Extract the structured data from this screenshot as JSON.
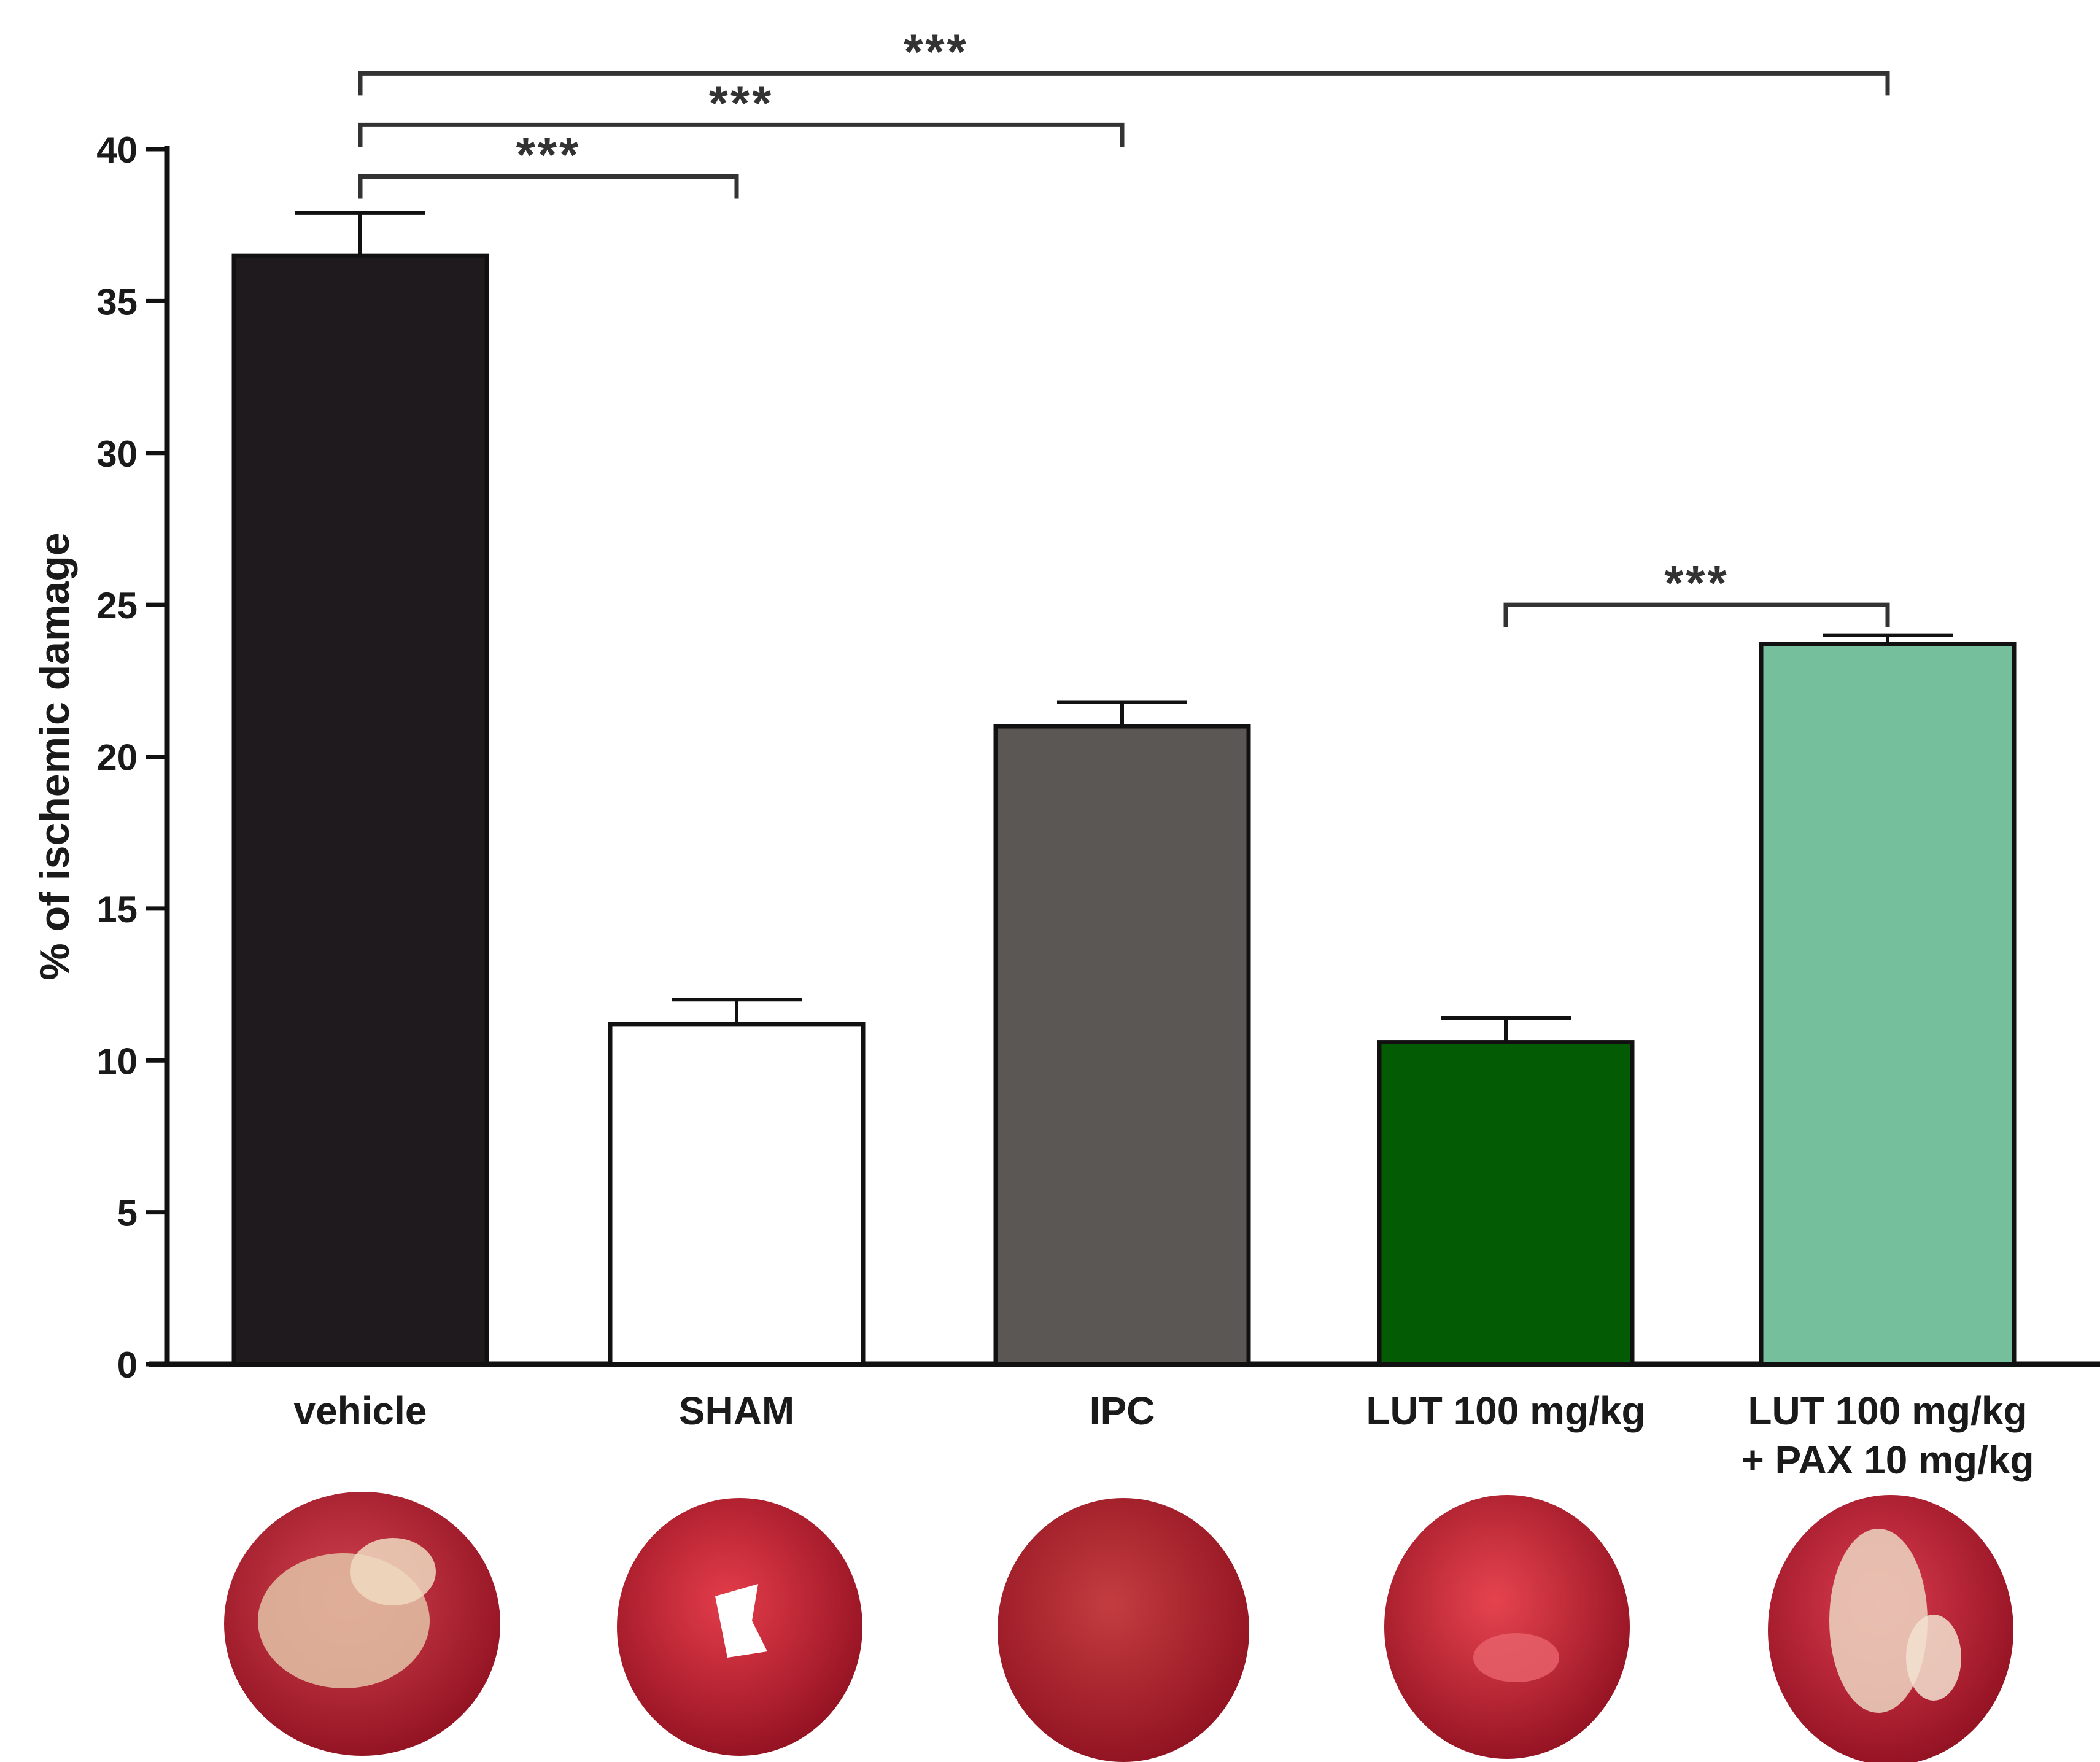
{
  "chart_data": {
    "type": "bar",
    "ylabel": "% of ischemic damage",
    "xlabel": "",
    "ylim": [
      0,
      40
    ],
    "yticks": [
      0,
      5,
      10,
      15,
      20,
      25,
      30,
      35,
      40
    ],
    "grid": false,
    "categories": [
      {
        "lines": [
          "vehicle"
        ]
      },
      {
        "lines": [
          "SHAM"
        ]
      },
      {
        "lines": [
          "IPC"
        ]
      },
      {
        "lines": [
          "LUT 100 mg/kg"
        ]
      },
      {
        "lines": [
          "LUT 100 mg/kg",
          "+ PAX 10 mg/kg"
        ]
      }
    ],
    "values": [
      36.5,
      11.2,
      21.0,
      10.6,
      23.7
    ],
    "errors": [
      1.4,
      0.8,
      0.8,
      0.8,
      0.3
    ],
    "colors": [
      "#1f1a1d",
      "#ffffff",
      "#5b5755",
      "#035c03",
      "#76bf9d"
    ],
    "significance": [
      {
        "from": 0,
        "to": 4,
        "level": 42.5,
        "label": "***"
      },
      {
        "from": 0,
        "to": 2,
        "level": 40.8,
        "label": "***"
      },
      {
        "from": 0,
        "to": 1,
        "level": 39.1,
        "label": "***"
      },
      {
        "from": 3,
        "to": 4,
        "level": 25.0,
        "label": "***"
      }
    ],
    "heart_images": [
      {
        "name": "vehicle",
        "infarct_pattern": "large-pale-center"
      },
      {
        "name": "SHAM",
        "infarct_pattern": "none"
      },
      {
        "name": "IPC",
        "infarct_pattern": "dark-red"
      },
      {
        "name": "LUT 100 mg/kg",
        "infarct_pattern": "minimal"
      },
      {
        "name": "LUT 100 mg/kg + PAX 10 mg/kg",
        "infarct_pattern": "pale-patches"
      }
    ]
  }
}
